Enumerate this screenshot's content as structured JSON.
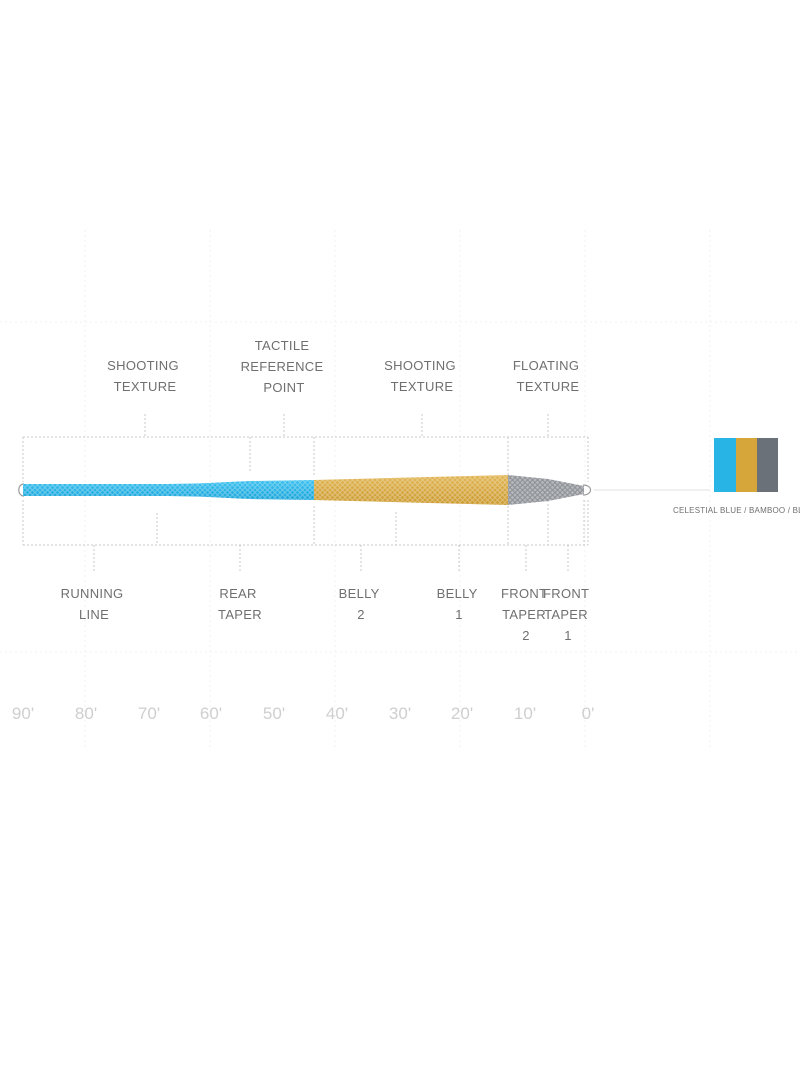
{
  "top_labels": [
    {
      "id": "shooting-texture-left",
      "lines": [
        "SHOOTING",
        "TEXTURE"
      ]
    },
    {
      "id": "tactile-reference-point",
      "lines": [
        "TACTILE",
        "REFERENCE",
        "POINT"
      ]
    },
    {
      "id": "shooting-texture-right",
      "lines": [
        "SHOOTING",
        "TEXTURE"
      ]
    },
    {
      "id": "floating-texture",
      "lines": [
        "FLOATING",
        "TEXTURE"
      ]
    }
  ],
  "bottom_labels": [
    {
      "id": "running-line",
      "lines": [
        "RUNNING",
        "LINE"
      ]
    },
    {
      "id": "rear-taper",
      "lines": [
        "REAR",
        "TAPER"
      ]
    },
    {
      "id": "belly-2",
      "lines": [
        "BELLY",
        "2"
      ]
    },
    {
      "id": "belly-1",
      "lines": [
        "BELLY",
        "1"
      ]
    },
    {
      "id": "front-taper-2",
      "lines": [
        "FRONT",
        "TAPER",
        "2"
      ]
    },
    {
      "id": "front-taper-1",
      "lines": [
        "FRONT",
        "TAPER",
        "1"
      ]
    }
  ],
  "distance_ticks": [
    "90'",
    "80'",
    "70'",
    "60'",
    "50'",
    "40'",
    "30'",
    "20'",
    "10'",
    "0'"
  ],
  "colors": {
    "celestial_blue": "#29b4e6",
    "bamboo": "#d6a63a",
    "blue_heron": "#6b7178"
  },
  "swatch_caption": "CELESTIAL BLUE / BAMBOO / BLUE HERON"
}
